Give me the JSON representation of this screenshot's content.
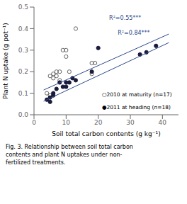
{
  "chart_data": {
    "type": "scatter",
    "x_label": "Soil total carbon contents (g kg⁻¹)",
    "y_label": "Plant N uptake (g pot⁻¹)",
    "caption": "Fig. 3. Relationship between soil total carbon\ncontents and plant N uptakes under non-\nfertilized treatments.",
    "xlim": [
      0,
      45
    ],
    "ylim": [
      0,
      0.5
    ],
    "xticks": [
      0,
      10,
      20,
      30,
      40
    ],
    "yticks": [
      {
        "value": 0,
        "label": "0.0"
      },
      0.1,
      0.2,
      0.3,
      0.4,
      0.5
    ],
    "grid": false,
    "series": [
      {
        "name": "○2010 at maturity (n=17)",
        "type": "scatter",
        "marker": "circle_open",
        "color": "#666666",
        "x": [
          4,
          5,
          5,
          6,
          6,
          7,
          7,
          8,
          8,
          9,
          10,
          10,
          11,
          13,
          18,
          18,
          19
        ],
        "values": [
          0.1,
          0.09,
          0.18,
          0.17,
          0.19,
          0.18,
          0.2,
          0.16,
          0.2,
          0.3,
          0.27,
          0.3,
          0.2,
          0.4,
          0.19,
          0.24,
          0.24
        ]
      },
      {
        "name": "●2011 at heading (n=18)",
        "type": "scatter",
        "marker": "circle",
        "color": "#1a1a3a",
        "x": [
          4,
          5,
          5,
          6,
          6,
          7,
          8,
          9,
          10,
          10,
          11,
          12,
          13,
          18,
          20,
          33,
          35,
          38
        ],
        "values": [
          0.07,
          0.06,
          0.08,
          0.09,
          0.1,
          0.12,
          0.15,
          0.13,
          0.13,
          0.15,
          0.15,
          0.17,
          0.16,
          0.2,
          0.31,
          0.28,
          0.29,
          0.32
        ]
      },
      {
        "type": "line",
        "color": "#2b4a8c",
        "x": [
          3,
          42
        ],
        "values": [
          0.115,
          0.375
        ]
      },
      {
        "type": "line",
        "color": "#2b4a8c",
        "x": [
          3,
          42
        ],
        "values": [
          0.063,
          0.335
        ]
      }
    ],
    "annotations": [
      {
        "text": "R²=0.55***",
        "color": "#2b4a8c"
      },
      {
        "text": "R²=0.84***",
        "color": "#2b4a8c"
      }
    ]
  }
}
